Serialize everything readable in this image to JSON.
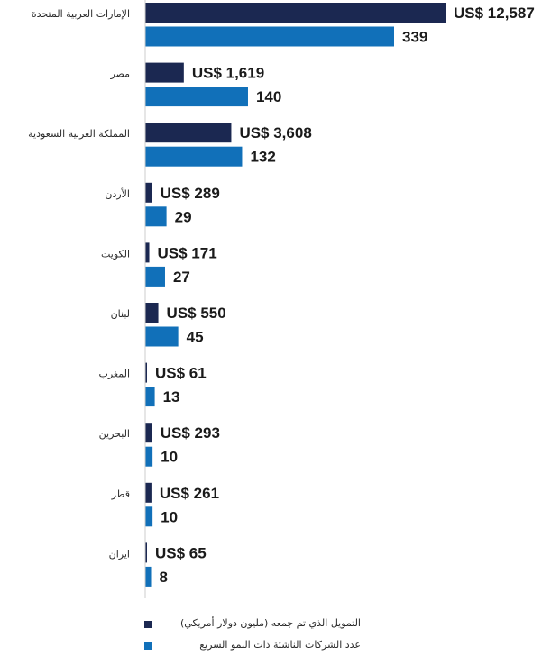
{
  "chart_data": {
    "type": "bar",
    "orientation": "horizontal",
    "categories": [
      "الإمارات العربية المتحدة",
      "مصر",
      "المملكة العربية السعودية",
      "الأردن",
      "الكويت",
      "لبنان",
      "المغرب",
      "البحرين",
      "قطر",
      "ايران"
    ],
    "series": [
      {
        "name": "التمويل الذي تم جمعه (مليون دولار أمريكي)",
        "values": [
          12587,
          1619,
          3608,
          289,
          171,
          550,
          61,
          293,
          261,
          65
        ],
        "labels": [
          "US$ 12,587",
          "US$ 1,619",
          "US$ 3,608",
          "US$ 289",
          "US$ 171",
          "US$ 550",
          "US$ 61",
          "US$ 293",
          "US$ 261",
          "US$ 65"
        ],
        "color": "#1b2851"
      },
      {
        "name": "عدد الشركات الناشئة ذات النمو السريع",
        "values": [
          339,
          140,
          132,
          29,
          27,
          45,
          13,
          10,
          10,
          8
        ],
        "labels": [
          "339",
          "140",
          "132",
          "29",
          "27",
          "45",
          "13",
          "10",
          "10",
          "8"
        ],
        "color": "#1170b9"
      }
    ],
    "legend_position": "bottom",
    "grid": false
  }
}
